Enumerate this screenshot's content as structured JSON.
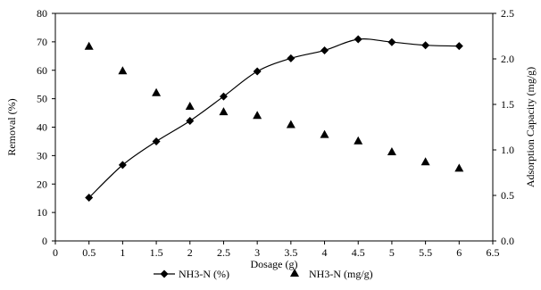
{
  "chart_data": {
    "type": "line",
    "title": "",
    "xlabel": "Dosage (g)",
    "ylabel": "Removal (%)",
    "y2label": "Adsorption Capacity (mg/g)",
    "xlim": [
      0,
      6.5
    ],
    "ylim": [
      0,
      80
    ],
    "y2lim": [
      0,
      2.5
    ],
    "x_ticks": [
      "0",
      "0.5",
      "1",
      "1.5",
      "2",
      "2.5",
      "3",
      "3.5",
      "4",
      "4.5",
      "5",
      "5.5",
      "6",
      "6.5"
    ],
    "y_ticks": [
      "0",
      "10",
      "20",
      "30",
      "40",
      "50",
      "60",
      "70",
      "80"
    ],
    "y2_ticks": [
      "0.0",
      "0.5",
      "1.0",
      "1.5",
      "2.0",
      "2.5"
    ],
    "grid": false,
    "legend_position": "bottom",
    "series": [
      {
        "name": "NH3-N (%)",
        "axis": "left",
        "marker": "diamond",
        "style": "line",
        "color": "#000000",
        "x": [
          0.5,
          1,
          1.5,
          2,
          2.5,
          3,
          3.5,
          4,
          4.5,
          5,
          5.5,
          6
        ],
        "values": [
          15.2,
          26.7,
          35.0,
          42.2,
          50.8,
          59.6,
          64.2,
          67.0,
          70.9,
          69.9,
          68.8,
          68.5
        ]
      },
      {
        "name": "NH3-N (mg/g)",
        "axis": "right",
        "marker": "triangle",
        "style": "markers",
        "color": "#000000",
        "x": [
          0.5,
          1,
          1.5,
          2,
          2.5,
          3,
          3.5,
          4,
          4.5,
          5,
          5.5,
          6
        ],
        "values": [
          2.14,
          1.87,
          1.63,
          1.48,
          1.42,
          1.38,
          1.28,
          1.17,
          1.1,
          0.98,
          0.87,
          0.8
        ]
      }
    ]
  }
}
